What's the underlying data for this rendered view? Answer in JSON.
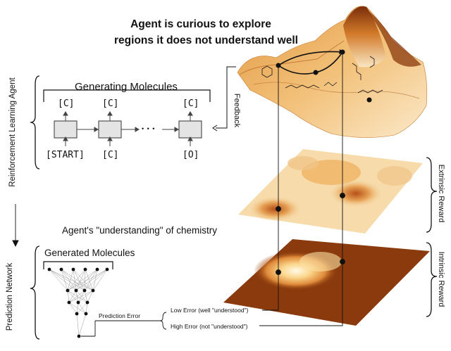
{
  "title": {
    "line1": "Agent is curious to explore",
    "line2": "regions it does not understand well"
  },
  "generating": {
    "label": "Generating Molecules",
    "outputs": [
      "[C]",
      "[C]",
      "[C]"
    ],
    "inputs": [
      "[START]",
      "[C]",
      "[O]"
    ],
    "ellipsis": "• • •"
  },
  "labels": {
    "rl_agent": "Reinforcement Learning Agent",
    "prediction_network": "Prediction Network",
    "feedback": "Feedback",
    "extrinsic_reward": "Extrinsic Reward",
    "intrinsic_reward": "Intrinsic Reward",
    "understanding": "Agent's \"understanding\" of chemistry",
    "generated_molecules": "Generated Molecules",
    "prediction_error": "Prediction Error",
    "low_error": "Low Error (well \"understood\")",
    "high_error": "High Error (not \"understood\")"
  },
  "colors": {
    "landscape_dark": "#8a3a0c",
    "landscape_mid": "#d9892f",
    "landscape_light": "#f6d7a0",
    "extrinsic_plane": "#f7d9a6",
    "intrinsic_plane": "#8a3a0c"
  }
}
